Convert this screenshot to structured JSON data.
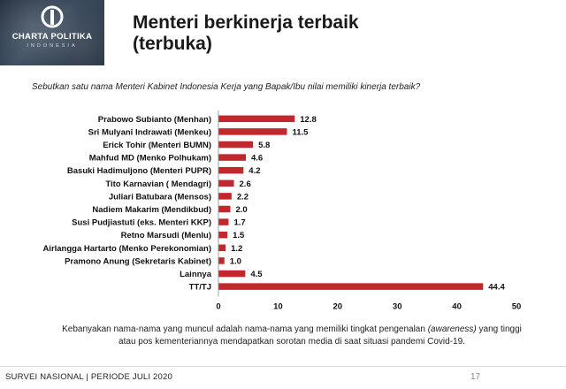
{
  "brand": {
    "name": "CHARTA POLITIKA",
    "sub": "INDONESIA",
    "accent": "#c0282d"
  },
  "slide": {
    "title_line1": "Menteri berkinerja terbaik",
    "title_line2": "(terbuka)",
    "question": "Sebutkan satu nama Menteri Kabinet Indonesia Kerja yang Bapak/Ibu nilai memiliki kinerja terbaik?",
    "note_part1": "Kebanyakan nama-nama yang muncul adalah nama-nama yang memiliki tingkat pengenalan ",
    "note_emph": "(awareness)",
    "note_part2": " yang tinggi atau pos kementeriannya mendapatkan sorotan media di saat situasi pandemi Covid-19.",
    "footer": "SURVEI NASIONAL | PERIODE JULI 2020",
    "page_number": "17"
  },
  "chart_data": {
    "type": "bar",
    "orientation": "horizontal",
    "title": "Menteri berkinerja terbaik (terbuka)",
    "xlabel": "",
    "ylabel": "",
    "xlim": [
      0,
      50
    ],
    "ticks": [
      0,
      10,
      20,
      30,
      40,
      50
    ],
    "grid": false,
    "bar_color": "#c0282d",
    "categories": [
      "Prabowo Subianto (Menhan)",
      "Sri Mulyani Indrawati (Menkeu)",
      "Erick Tohir (Menteri BUMN)",
      "Mahfud MD (Menko Polhukam)",
      "Basuki Hadimuljono (Menteri PUPR)",
      "Tito Karnavian ( Mendagri)",
      "Juliari Batubara (Mensos)",
      "Nadiem Makarim (Mendikbud)",
      "Susi Pudjiastuti (eks. Menteri KKP)",
      "Retno Marsudi (Menlu)",
      "Airlangga Hartarto (Menko Perekonomian)",
      "Pramono Anung (Sekretaris Kabinet)",
      "Lainnya",
      "TT/TJ"
    ],
    "values": [
      12.8,
      11.5,
      5.8,
      4.6,
      4.2,
      2.6,
      2.2,
      2.0,
      1.7,
      1.5,
      1.2,
      1.0,
      4.5,
      44.4
    ],
    "value_labels": [
      "12.8",
      "11.5",
      "5.8",
      "4.6",
      "4.2",
      "2.6",
      "2.2",
      "2.0",
      "1.7",
      "1.5",
      "1.2",
      "1.0",
      "4.5",
      "44.4"
    ]
  }
}
